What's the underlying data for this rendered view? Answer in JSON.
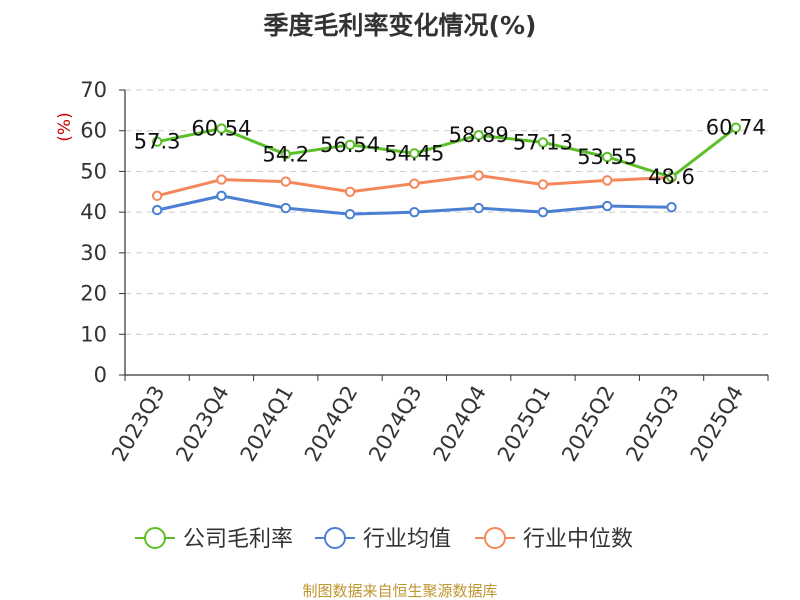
{
  "chart_data": {
    "type": "line",
    "title": "季度毛利率变化情况(%)",
    "ylabel": "(%)",
    "xlabel": "",
    "ylim": [
      0,
      70
    ],
    "yticks": [
      0,
      10,
      20,
      30,
      40,
      50,
      60,
      70
    ],
    "grid": true,
    "legend_position": "bottom",
    "categories": [
      "2023Q3",
      "2023Q4",
      "2024Q1",
      "2024Q2",
      "2024Q3",
      "2024Q4",
      "2025Q1",
      "2025Q2",
      "2025Q3",
      "2025Q4"
    ],
    "series": [
      {
        "name": "公司毛利率",
        "color": "#5cbf2a",
        "values": [
          57.3,
          60.54,
          54.2,
          56.54,
          54.45,
          58.89,
          57.13,
          53.55,
          48.6,
          60.74
        ],
        "labels": [
          "57.3",
          "60.54",
          "54.2",
          "56.54",
          "54.45",
          "58.89",
          "57.13",
          "53.55",
          "48.6",
          "60.74"
        ]
      },
      {
        "name": "行业均值",
        "color": "#4a7fd4",
        "values": [
          40.5,
          44.0,
          41.0,
          39.5,
          40.0,
          41.0,
          40.0,
          41.5,
          41.2,
          null
        ]
      },
      {
        "name": "行业中位数",
        "color": "#f5885a",
        "values": [
          44.0,
          48.0,
          47.5,
          45.0,
          47.0,
          49.0,
          46.8,
          47.8,
          48.5,
          null
        ]
      }
    ],
    "source": "制图数据来自恒生聚源数据库"
  }
}
